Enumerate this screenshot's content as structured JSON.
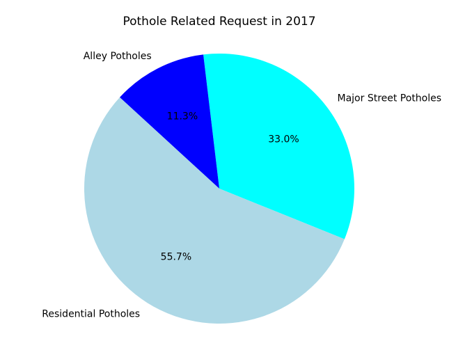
{
  "chart_data": {
    "type": "pie",
    "title": "Pothole Related Request in 2017",
    "slices": [
      {
        "label": "Major Street Potholes",
        "value": 33.0,
        "pct_label": "33.0%",
        "color": "#00ffff"
      },
      {
        "label": "Alley Potholes",
        "value": 11.3,
        "pct_label": "11.3%",
        "color": "#0000ff"
      },
      {
        "label": "Residential Potholes",
        "value": 55.7,
        "pct_label": "55.7%",
        "color": "#add8e6"
      }
    ],
    "start_angle_deg": -22,
    "direction": "counterclockwise",
    "legend": "none"
  }
}
